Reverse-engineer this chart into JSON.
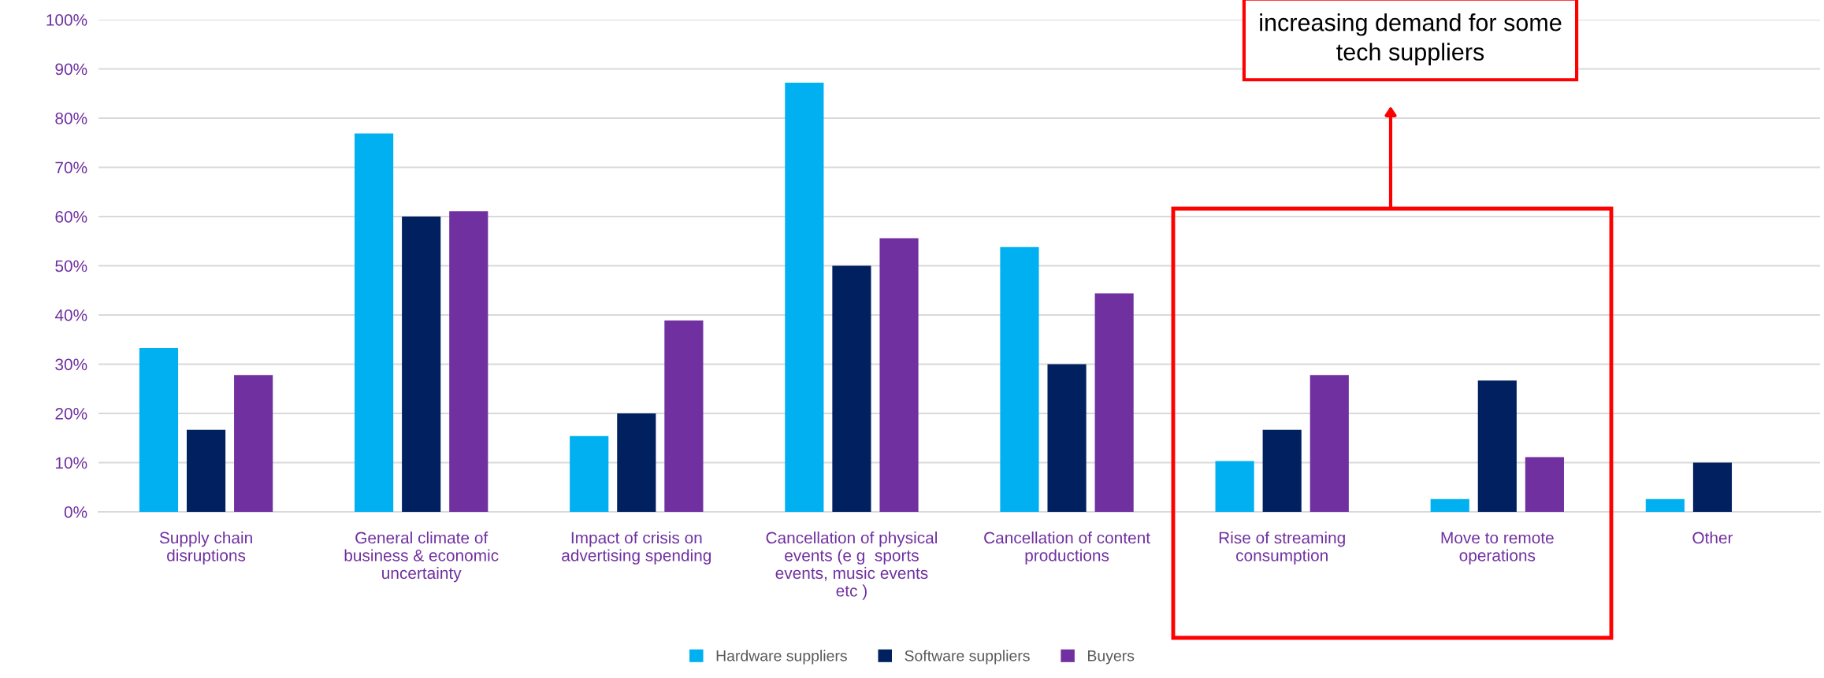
{
  "chart_data": {
    "type": "bar",
    "categories": [
      "Supply chain\ndisruptions",
      "General climate of\nbusiness & economic\nuncertainty",
      "Impact of crisis on\nadvertising spending",
      "Cancellation of physical\nevents (e g  sports\nevents, music events\netc )",
      "Cancellation of content\nproductions",
      "Rise of streaming\nconsumption",
      "Move to remote\noperations",
      "Other"
    ],
    "series": [
      {
        "name": "Hardware suppliers",
        "color": "#00b0f0",
        "values": [
          33.3,
          76.9,
          15.4,
          87.2,
          53.8,
          10.3,
          2.6,
          2.6
        ]
      },
      {
        "name": "Software suppliers",
        "color": "#002060",
        "values": [
          16.7,
          60,
          20,
          50,
          30,
          16.7,
          26.7,
          10
        ]
      },
      {
        "name": "Buyers",
        "color": "#7030a0",
        "values": [
          27.8,
          61.1,
          38.9,
          55.6,
          44.4,
          27.8,
          11.1,
          null
        ]
      }
    ],
    "ylim": [
      0,
      100
    ],
    "yticks": [
      {
        "value": 0,
        "label": "0%"
      },
      {
        "value": 10,
        "label": "10%"
      },
      {
        "value": 20,
        "label": "20%"
      },
      {
        "value": 30,
        "label": "30%"
      },
      {
        "value": 40,
        "label": "40%"
      },
      {
        "value": 50,
        "label": "50%"
      },
      {
        "value": 60,
        "label": "60%"
      },
      {
        "value": 70,
        "label": "70%"
      },
      {
        "value": 80,
        "label": "80%"
      },
      {
        "value": 90,
        "label": "90%"
      },
      {
        "value": 100,
        "label": "100%"
      }
    ],
    "grid": "y",
    "legend": "bottom",
    "annotations": [
      "increasing demand for some\ntech suppliers"
    ]
  }
}
